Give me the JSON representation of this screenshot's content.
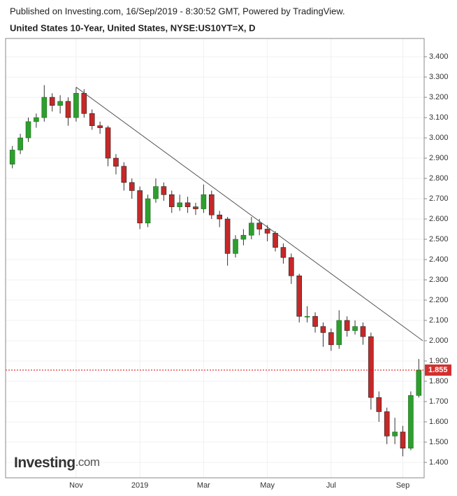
{
  "header": {
    "published": "Published on Investing.com, 16/Sep/2019 - 8:30:52 GMT, Powered by TradingView.",
    "symbol": "United States 10-Year, United States, NYSE:US10YT=X, D"
  },
  "watermark": [
    "Investing",
    ".com"
  ],
  "chart_data": {
    "type": "candlestick",
    "categories": [
      null,
      null,
      null,
      null,
      null,
      null,
      null,
      null,
      "Nov",
      null,
      null,
      null,
      null,
      null,
      null,
      null,
      "2019",
      null,
      null,
      null,
      null,
      null,
      null,
      null,
      "Mar",
      null,
      null,
      null,
      null,
      null,
      null,
      null,
      "May",
      null,
      null,
      null,
      null,
      null,
      null,
      null,
      "Jul",
      null,
      null,
      null,
      null,
      null,
      null,
      null,
      null,
      "Sep",
      null,
      null
    ],
    "open": [
      2.87,
      2.94,
      3.0,
      3.08,
      3.1,
      3.2,
      3.16,
      3.18,
      3.1,
      3.22,
      3.12,
      3.06,
      3.05,
      2.9,
      2.86,
      2.78,
      2.74,
      2.58,
      2.7,
      2.76,
      2.72,
      2.66,
      2.68,
      2.66,
      2.65,
      2.72,
      2.62,
      2.6,
      2.43,
      2.5,
      2.52,
      2.58,
      2.55,
      2.53,
      2.46,
      2.41,
      2.32,
      2.12,
      2.12,
      2.07,
      2.04,
      1.98,
      2.1,
      2.05,
      2.07,
      2.02,
      1.72,
      1.65,
      1.53,
      1.55,
      1.47,
      1.73
    ],
    "high": [
      2.96,
      3.02,
      3.1,
      3.12,
      3.26,
      3.22,
      3.21,
      3.2,
      3.25,
      3.24,
      3.14,
      3.08,
      3.06,
      2.92,
      2.88,
      2.8,
      2.76,
      2.72,
      2.8,
      2.78,
      2.74,
      2.72,
      2.71,
      2.68,
      2.77,
      2.74,
      2.64,
      2.61,
      2.52,
      2.55,
      2.61,
      2.6,
      2.57,
      2.54,
      2.48,
      2.43,
      2.33,
      2.17,
      2.14,
      2.09,
      2.06,
      2.15,
      2.12,
      2.1,
      2.09,
      2.04,
      1.75,
      1.67,
      1.62,
      1.58,
      1.75,
      1.91
    ],
    "low": [
      2.85,
      2.92,
      2.98,
      3.05,
      3.08,
      3.13,
      3.12,
      3.06,
      3.08,
      3.1,
      3.04,
      3.02,
      2.86,
      2.82,
      2.74,
      2.7,
      2.55,
      2.56,
      2.68,
      2.69,
      2.63,
      2.64,
      2.63,
      2.62,
      2.63,
      2.6,
      2.56,
      2.37,
      2.41,
      2.47,
      2.5,
      2.52,
      2.49,
      2.44,
      2.38,
      2.28,
      2.09,
      2.09,
      2.04,
      1.97,
      1.95,
      1.96,
      2.02,
      2.03,
      1.98,
      1.66,
      1.6,
      1.49,
      1.49,
      1.43,
      1.46,
      1.72
    ],
    "close": [
      2.94,
      3.0,
      3.08,
      3.1,
      3.2,
      3.16,
      3.18,
      3.1,
      3.22,
      3.12,
      3.06,
      3.05,
      2.9,
      2.86,
      2.78,
      2.74,
      2.58,
      2.7,
      2.76,
      2.72,
      2.66,
      2.68,
      2.66,
      2.65,
      2.72,
      2.62,
      2.6,
      2.43,
      2.5,
      2.52,
      2.58,
      2.55,
      2.53,
      2.46,
      2.41,
      2.32,
      2.12,
      2.12,
      2.07,
      2.04,
      1.98,
      2.1,
      2.05,
      2.07,
      2.02,
      1.72,
      1.65,
      1.53,
      1.55,
      1.47,
      1.73,
      1.855
    ],
    "up_color": "#2e9e2e",
    "down_color": "#c62828",
    "ylim": [
      1.324,
      3.49
    ],
    "yticks": [
      {
        "value": 1.4,
        "label": "1.400"
      },
      {
        "value": 1.5,
        "label": "1.500"
      },
      {
        "value": 1.6,
        "label": "1.600"
      },
      {
        "value": 1.7,
        "label": "1.700"
      },
      {
        "value": 1.8,
        "label": "1.800"
      },
      {
        "value": 1.9,
        "label": "1.900"
      },
      {
        "value": 2.0,
        "label": "2.000"
      },
      {
        "value": 2.1,
        "label": "2.100"
      },
      {
        "value": 2.2,
        "label": "2.200"
      },
      {
        "value": 2.3,
        "label": "2.300"
      },
      {
        "value": 2.4,
        "label": "2.400"
      },
      {
        "value": 2.5,
        "label": "2.500"
      },
      {
        "value": 2.6,
        "label": "2.600"
      },
      {
        "value": 2.7,
        "label": "2.700"
      },
      {
        "value": 2.8,
        "label": "2.800"
      },
      {
        "value": 2.9,
        "label": "2.900"
      },
      {
        "value": 3.0,
        "label": "3.000"
      },
      {
        "value": 3.1,
        "label": "3.100"
      },
      {
        "value": 3.2,
        "label": "3.200"
      },
      {
        "value": 3.3,
        "label": "3.300"
      },
      {
        "value": 3.4,
        "label": "3.400"
      }
    ],
    "grid": true,
    "trendline": [
      3.25,
      2.0
    ],
    "last_value": 1.855
  }
}
